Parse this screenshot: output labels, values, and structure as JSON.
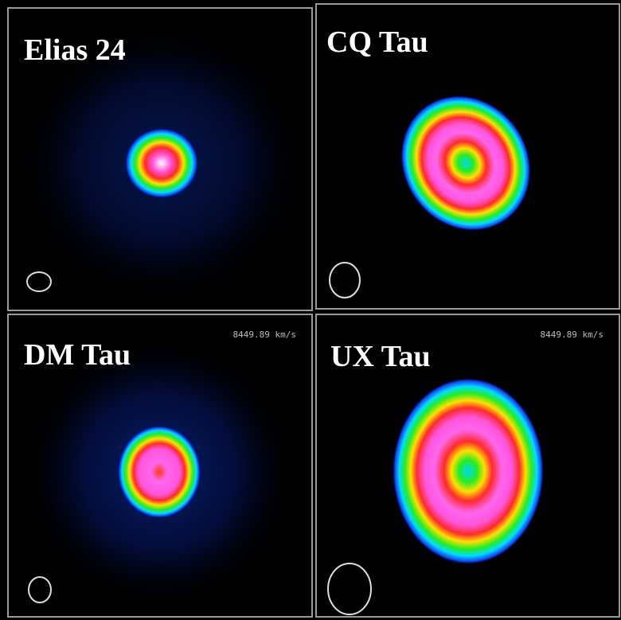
{
  "panels": [
    {
      "label": "Elias 24"
    },
    {
      "label": "CQ Tau"
    },
    {
      "label": "DM Tau",
      "velocity": "8449.89 km/s"
    },
    {
      "label": "UX Tau",
      "velocity": "8449.89 km/s"
    }
  ]
}
